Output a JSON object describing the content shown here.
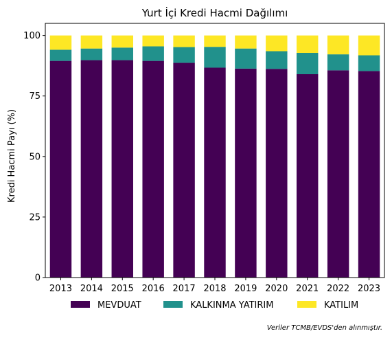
{
  "chart_data": {
    "type": "bar",
    "stacked": true,
    "title": "Yurt İçi Kredi Hacmi Dağılımı",
    "xlabel": "",
    "ylabel": "Kredi Hacmi Payı (%)",
    "ylim": [
      0,
      105
    ],
    "yticks": [
      "0",
      "25",
      "50",
      "75",
      "100"
    ],
    "grid": false,
    "legend_position": "bottom",
    "categories": [
      "2013",
      "2014",
      "2015",
      "2016",
      "2017",
      "2018",
      "2019",
      "2020",
      "2021",
      "2022",
      "2023"
    ],
    "series": [
      {
        "name": "MEVDUAT",
        "color": "#440154",
        "values": [
          89.5,
          89.8,
          89.8,
          89.5,
          88.7,
          86.7,
          86.3,
          86.2,
          84.0,
          85.6,
          85.3
        ]
      },
      {
        "name": "KALKINMA YATIRIM",
        "color": "#21918c",
        "values": [
          4.6,
          4.8,
          5.2,
          6.0,
          6.5,
          8.6,
          8.3,
          7.3,
          8.8,
          6.6,
          6.5
        ]
      },
      {
        "name": "KATILIM",
        "color": "#fde725",
        "values": [
          5.9,
          5.4,
          5.0,
          4.5,
          4.8,
          4.7,
          5.4,
          6.5,
          7.2,
          7.8,
          8.2
        ]
      }
    ],
    "footnote": "Veriler TCMB/EVDS'den alınmıştır."
  }
}
